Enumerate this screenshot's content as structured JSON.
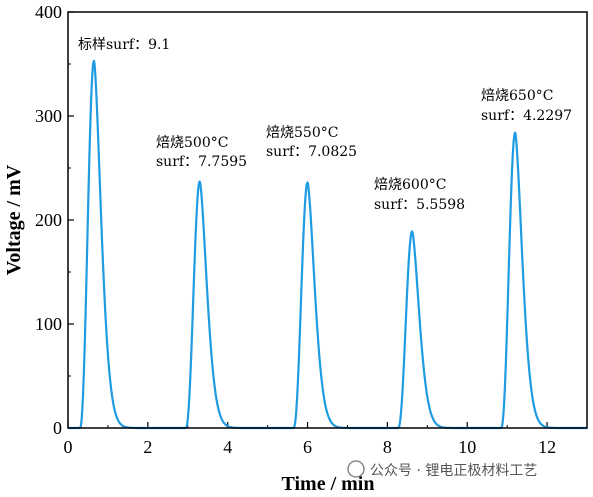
{
  "chart_data": {
    "type": "line",
    "xlabel": "Time / min",
    "ylabel": "Voltage / mV",
    "xlim": [
      0,
      13
    ],
    "ylim": [
      0,
      400
    ],
    "xticks": [
      "0",
      "2",
      "4",
      "6",
      "8",
      "10",
      "12"
    ],
    "yticks": [
      "0",
      "100",
      "200",
      "300",
      "400"
    ],
    "grid": false,
    "color": "#1e9be2",
    "peaks": [
      {
        "center": 0.65,
        "height": 353,
        "start": 0.3
      },
      {
        "center": 3.3,
        "height": 237,
        "start": 2.95
      },
      {
        "center": 6.0,
        "height": 236,
        "start": 5.65
      },
      {
        "center": 8.62,
        "height": 189,
        "start": 8.27
      },
      {
        "center": 11.2,
        "height": 284,
        "start": 10.85
      }
    ],
    "annotations": [
      {
        "line1": "标样surf：9.1",
        "line2": ""
      },
      {
        "line1": "焙烧500°C",
        "line2": "surf：7.7595"
      },
      {
        "line1": "焙烧550°C",
        "line2": "surf：7.0825"
      },
      {
        "line1": "焙烧600°C",
        "line2": "surf：5.5598"
      },
      {
        "line1": "焙烧650°C",
        "line2": "surf：4.2297"
      }
    ]
  },
  "watermark": "公众号 · 锂电正极材料工艺"
}
